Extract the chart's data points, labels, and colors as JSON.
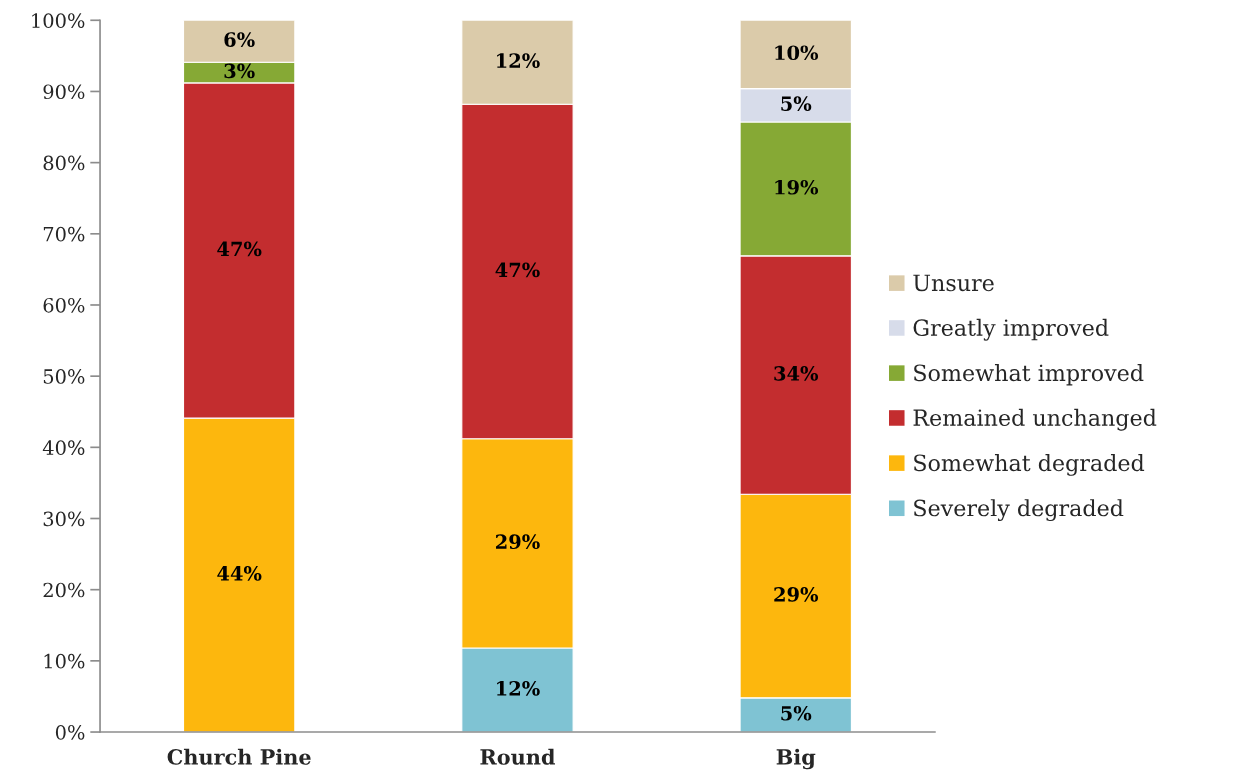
{
  "chart_data": {
    "type": "bar",
    "stacked": true,
    "categories": [
      "Church Pine",
      "Round",
      "Big"
    ],
    "series": [
      {
        "name": "Severely degraded",
        "color": "#7fc3d3",
        "values": [
          null,
          11.8,
          4.8
        ],
        "value_labels": [
          null,
          "12%",
          "5%"
        ]
      },
      {
        "name": "Somewhat degraded",
        "color": "#fdb70d",
        "values": [
          44.1,
          29.4,
          28.6
        ],
        "value_labels": [
          "44%",
          "29%",
          "29%"
        ]
      },
      {
        "name": "Remained unchanged",
        "color": "#c32d2f",
        "values": [
          47.1,
          47.0,
          33.5
        ],
        "value_labels": [
          "47%",
          "47%",
          "34%"
        ]
      },
      {
        "name": "Somewhat improved",
        "color": "#86a935",
        "values": [
          2.9,
          null,
          18.8
        ],
        "value_labels": [
          "3%",
          null,
          "19%"
        ]
      },
      {
        "name": "Greatly improved",
        "color": "#d7dcea",
        "values": [
          null,
          null,
          4.7
        ],
        "value_labels": [
          null,
          null,
          "5%"
        ]
      },
      {
        "name": "Unsure",
        "color": "#dbcbaa",
        "values": [
          5.9,
          11.8,
          9.6
        ],
        "value_labels": [
          "6%",
          "12%",
          "10%"
        ]
      }
    ],
    "ylim": [
      0,
      100
    ],
    "yticks": [
      {
        "value": 0,
        "label": "0%"
      },
      {
        "value": 10,
        "label": "10%"
      },
      {
        "value": 20,
        "label": "20%"
      },
      {
        "value": 30,
        "label": "30%"
      },
      {
        "value": 40,
        "label": "40%"
      },
      {
        "value": 50,
        "label": "50%"
      },
      {
        "value": 60,
        "label": "60%"
      },
      {
        "value": 70,
        "label": "70%"
      },
      {
        "value": 80,
        "label": "80%"
      },
      {
        "value": 90,
        "label": "90%"
      },
      {
        "value": 100,
        "label": "100%"
      }
    ],
    "legend": "right",
    "grid": false
  }
}
